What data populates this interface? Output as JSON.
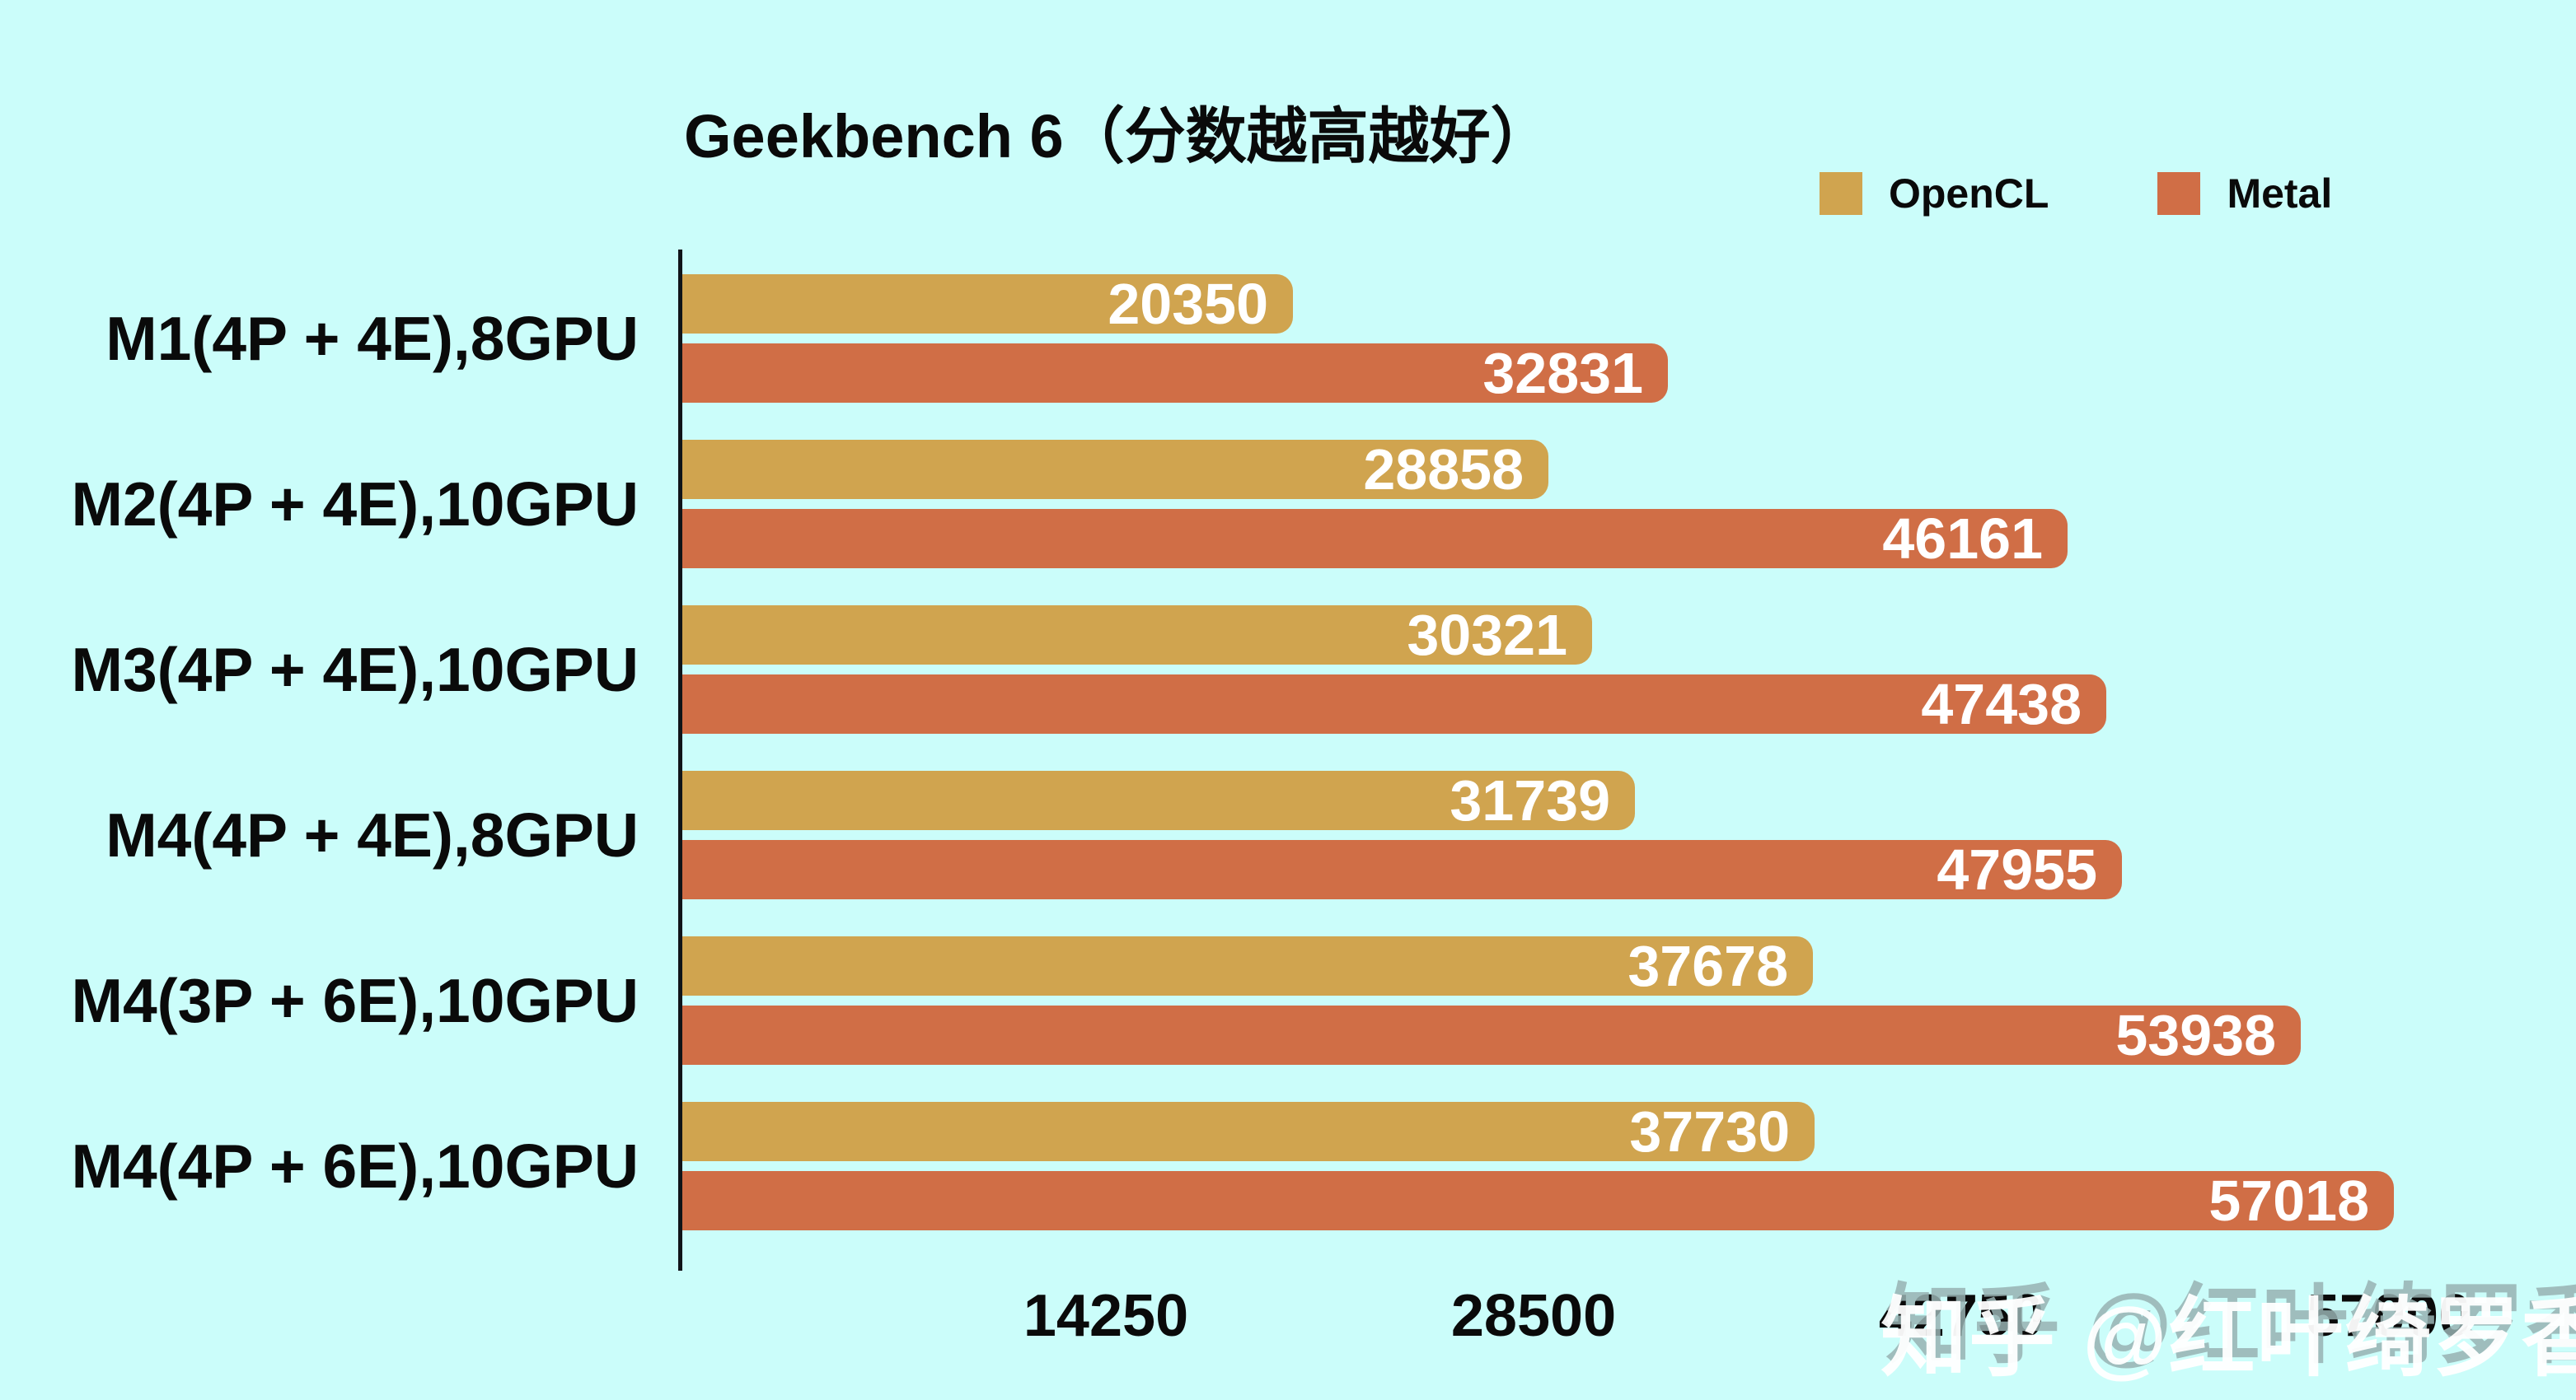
{
  "page": {
    "background_color": "#CBFDFA",
    "text_color": "#0a0a0a"
  },
  "title": "Geekbench 6（分数越高越好）",
  "legend": {
    "items": [
      {
        "label": "OpenCL",
        "color": "#D0A44F"
      },
      {
        "label": "Metal",
        "color": "#D06E46"
      }
    ]
  },
  "watermark": "知乎 @红叶绮罗香",
  "chart_data": {
    "type": "bar",
    "orientation": "horizontal",
    "title": "Geekbench 6（分数越高越好）",
    "categories": [
      "M1(4P + 4E),8GPU",
      "M2(4P + 4E),10GPU",
      "M3(4P + 4E),10GPU",
      "M4(4P + 4E),8GPU",
      "M4(3P + 6E),10GPU",
      "M4(4P + 6E),10GPU"
    ],
    "series": [
      {
        "name": "OpenCL",
        "color": "#D0A44F",
        "values": [
          20350,
          28858,
          30321,
          31739,
          37678,
          37730
        ]
      },
      {
        "name": "Metal",
        "color": "#D06E46",
        "values": [
          32831,
          46161,
          47438,
          47955,
          53938,
          57018
        ]
      }
    ],
    "x_ticks": [
      14250,
      28500,
      42750,
      57000
    ],
    "xlim": [
      0,
      57000
    ],
    "grid": false,
    "value_labels": "inside-end",
    "legend_position": "top-right",
    "note": "分数越高越好 (higher is better)"
  }
}
